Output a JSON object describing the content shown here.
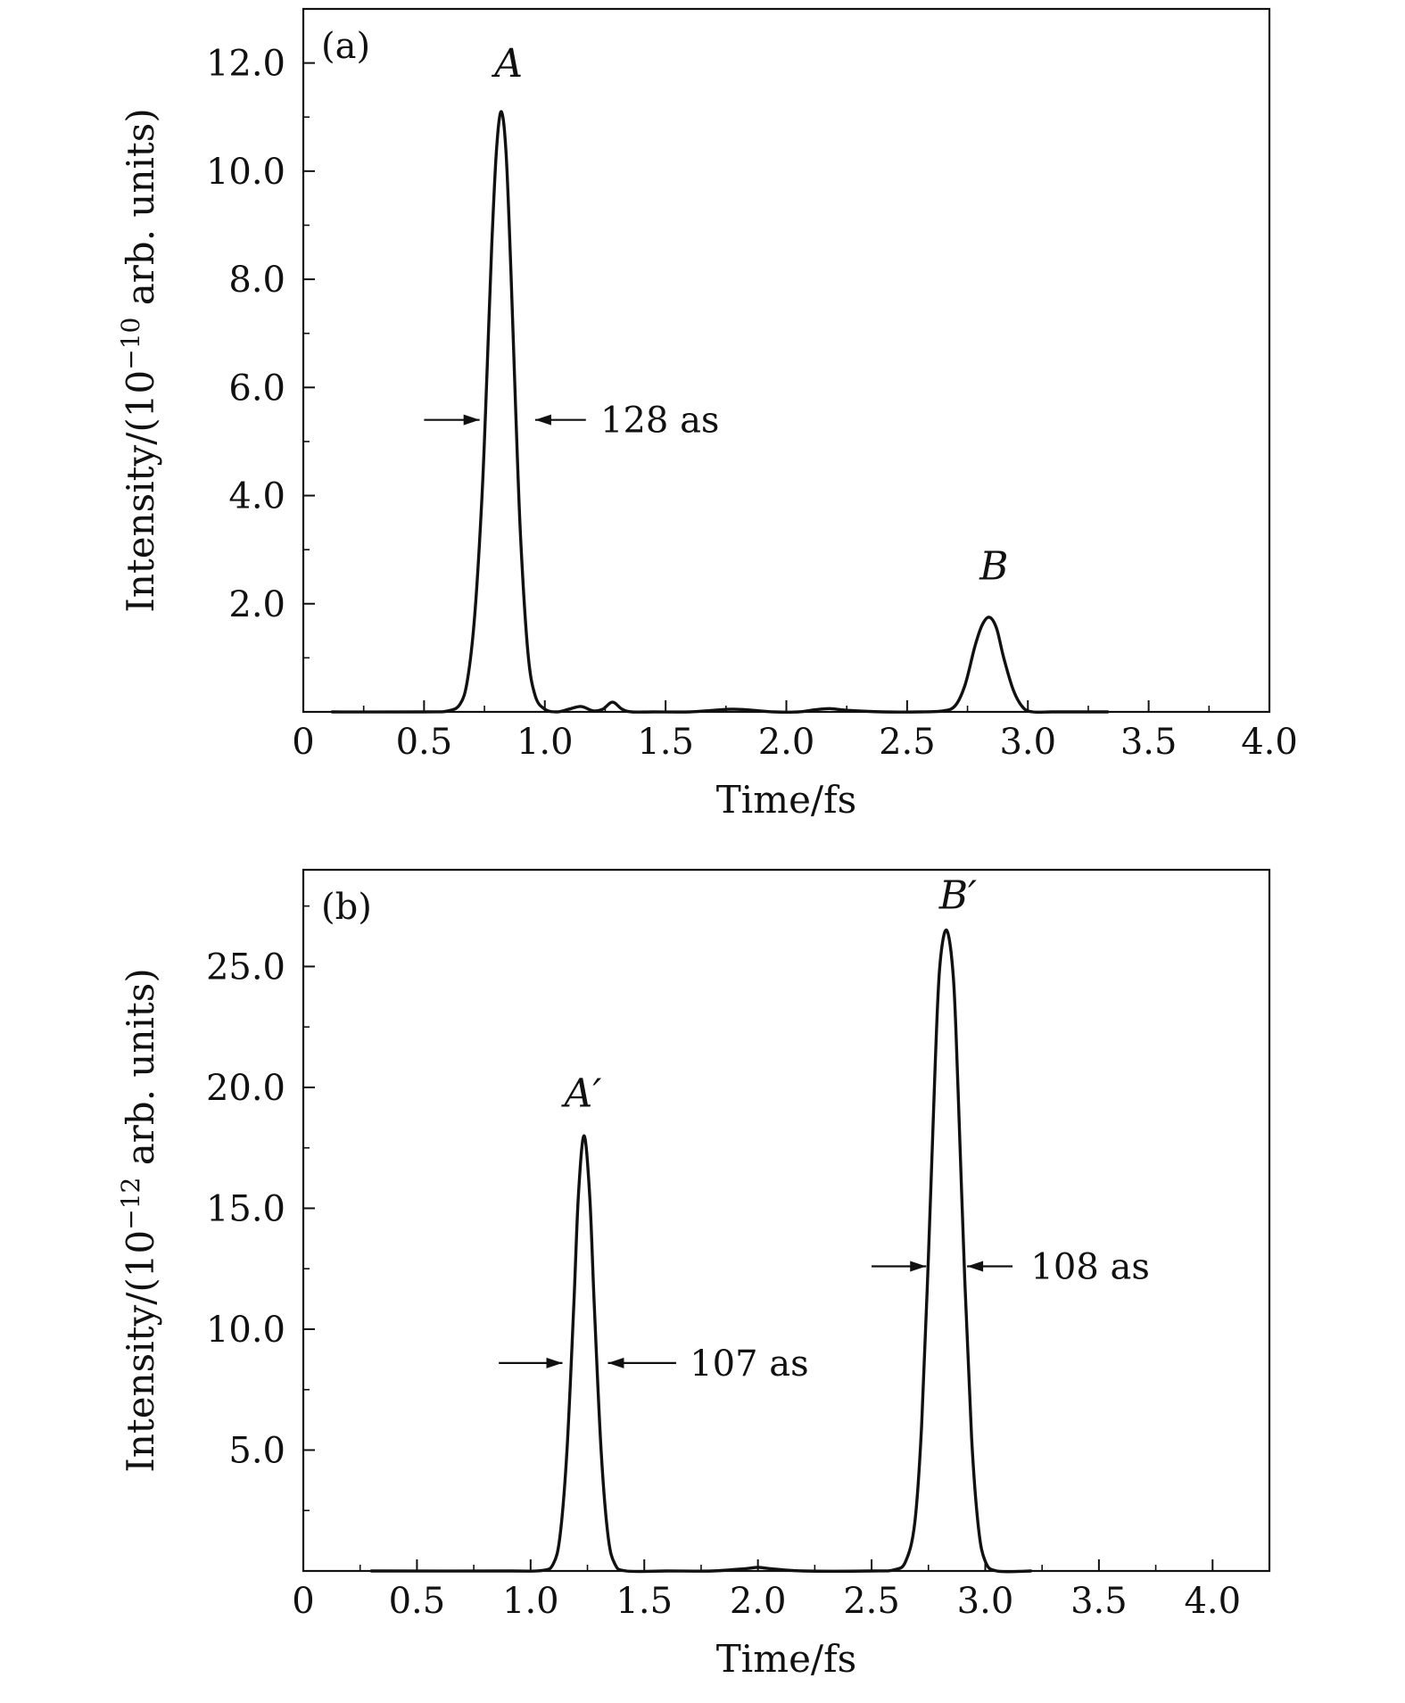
{
  "chart_data": [
    {
      "type": "line",
      "panel_label": "(a)",
      "xlabel": "Time/fs",
      "ylabel": "Intensity/(10",
      "ylabel_exponent": "−10",
      "ylabel_suffix": " arb. units)",
      "xlim": [
        0,
        4.0
      ],
      "ylim": [
        0,
        13.0
      ],
      "xticks": [
        "0",
        "0.5",
        "1.0",
        "1.5",
        "2.0",
        "2.5",
        "3.0",
        "3.5",
        "4.0"
      ],
      "xtick_values": [
        0,
        0.5,
        1.0,
        1.5,
        2.0,
        2.5,
        3.0,
        3.5,
        4.0
      ],
      "yticks": [
        "2.0",
        "4.0",
        "6.0",
        "8.0",
        "10.0",
        "12.0"
      ],
      "ytick_values": [
        2.0,
        4.0,
        6.0,
        8.0,
        10.0,
        12.0
      ],
      "grid": false,
      "series": [
        {
          "x": [
            0.12,
            0.5,
            0.6,
            0.65,
            0.68,
            0.71,
            0.74,
            0.76,
            0.78,
            0.8,
            0.82,
            0.84,
            0.86,
            0.88,
            0.9,
            0.93,
            0.96,
            1.0,
            1.05,
            1.1,
            1.15,
            1.2,
            1.24,
            1.28,
            1.32,
            1.36,
            1.45,
            1.6,
            1.7,
            1.78,
            1.86,
            1.95,
            2.05,
            2.12,
            2.18,
            2.25,
            2.4,
            2.55,
            2.65,
            2.7,
            2.74,
            2.78,
            2.81,
            2.84,
            2.87,
            2.9,
            2.94,
            2.98,
            3.02,
            3.1,
            3.2,
            3.33
          ],
          "y": [
            0.0,
            0.0,
            0.02,
            0.15,
            0.6,
            1.8,
            4.0,
            6.2,
            8.6,
            10.4,
            11.1,
            10.3,
            8.1,
            5.5,
            3.2,
            1.1,
            0.3,
            0.05,
            0.0,
            0.05,
            0.1,
            0.02,
            0.05,
            0.18,
            0.05,
            0.0,
            0.0,
            0.0,
            0.03,
            0.05,
            0.03,
            0.0,
            0.0,
            0.04,
            0.06,
            0.03,
            0.0,
            0.0,
            0.02,
            0.12,
            0.5,
            1.2,
            1.6,
            1.75,
            1.55,
            1.0,
            0.4,
            0.08,
            0.0,
            0.0,
            0.0,
            0.0
          ]
        }
      ],
      "annotations": [
        {
          "text": "A",
          "x": 0.85,
          "y": 11.75
        },
        {
          "text": "B",
          "x": 2.86,
          "y": 2.45
        },
        {
          "text": "128 as",
          "x": 1.23,
          "y": 5.4,
          "arrow_left_x": [
            0.5,
            0.73
          ],
          "arrow_right_x": [
            1.17,
            0.96
          ],
          "arrow_y": 5.4
        }
      ]
    },
    {
      "type": "line",
      "panel_label": "(b)",
      "xlabel": "Time/fs",
      "ylabel": "Intensity/(10",
      "ylabel_exponent": "−12",
      "ylabel_suffix": " arb. units)",
      "xlim": [
        0,
        4.25
      ],
      "ylim": [
        0,
        29.0
      ],
      "xticks": [
        "0",
        "0.5",
        "1.0",
        "1.5",
        "2.0",
        "2.5",
        "3.0",
        "3.5",
        "4.0"
      ],
      "xtick_values": [
        0,
        0.5,
        1.0,
        1.5,
        2.0,
        2.5,
        3.0,
        3.5,
        4.0
      ],
      "yticks": [
        "5.0",
        "10.0",
        "15.0",
        "20.0",
        "25.0"
      ],
      "ytick_values": [
        5.0,
        10.0,
        15.0,
        20.0,
        25.0
      ],
      "grid": false,
      "series": [
        {
          "x": [
            0.3,
            0.9,
            1.05,
            1.1,
            1.13,
            1.16,
            1.19,
            1.21,
            1.235,
            1.26,
            1.28,
            1.31,
            1.34,
            1.37,
            1.42,
            1.6,
            1.8,
            1.95,
            2.0,
            2.05,
            2.2,
            2.5,
            2.6,
            2.65,
            2.69,
            2.72,
            2.75,
            2.78,
            2.8,
            2.83,
            2.86,
            2.88,
            2.91,
            2.94,
            2.97,
            3.0,
            3.05,
            3.2
          ],
          "y": [
            0.0,
            0.0,
            0.02,
            0.3,
            1.5,
            5.0,
            11.0,
            15.5,
            18.0,
            15.5,
            11.0,
            5.0,
            1.5,
            0.3,
            0.0,
            0.0,
            0.0,
            0.1,
            0.15,
            0.1,
            0.0,
            0.0,
            0.05,
            0.4,
            2.0,
            6.0,
            13.0,
            21.0,
            25.0,
            26.5,
            24.5,
            20.0,
            12.0,
            5.5,
            1.8,
            0.4,
            0.0,
            0.0
          ]
        }
      ],
      "annotations": [
        {
          "text": "A′",
          "x": 1.23,
          "y": 19.2
        },
        {
          "text": "B′",
          "x": 2.88,
          "y": 27.4
        },
        {
          "text": "107 as",
          "x": 1.7,
          "y": 8.6,
          "arrow_left_x": [
            0.86,
            1.14
          ],
          "arrow_right_x": [
            1.64,
            1.34
          ],
          "arrow_y": 8.6
        },
        {
          "text": "108 as",
          "x": 3.2,
          "y": 12.6,
          "arrow_left_x": [
            2.5,
            2.74
          ],
          "arrow_right_x": [
            3.12,
            2.92
          ],
          "arrow_y": 12.6
        }
      ]
    }
  ]
}
